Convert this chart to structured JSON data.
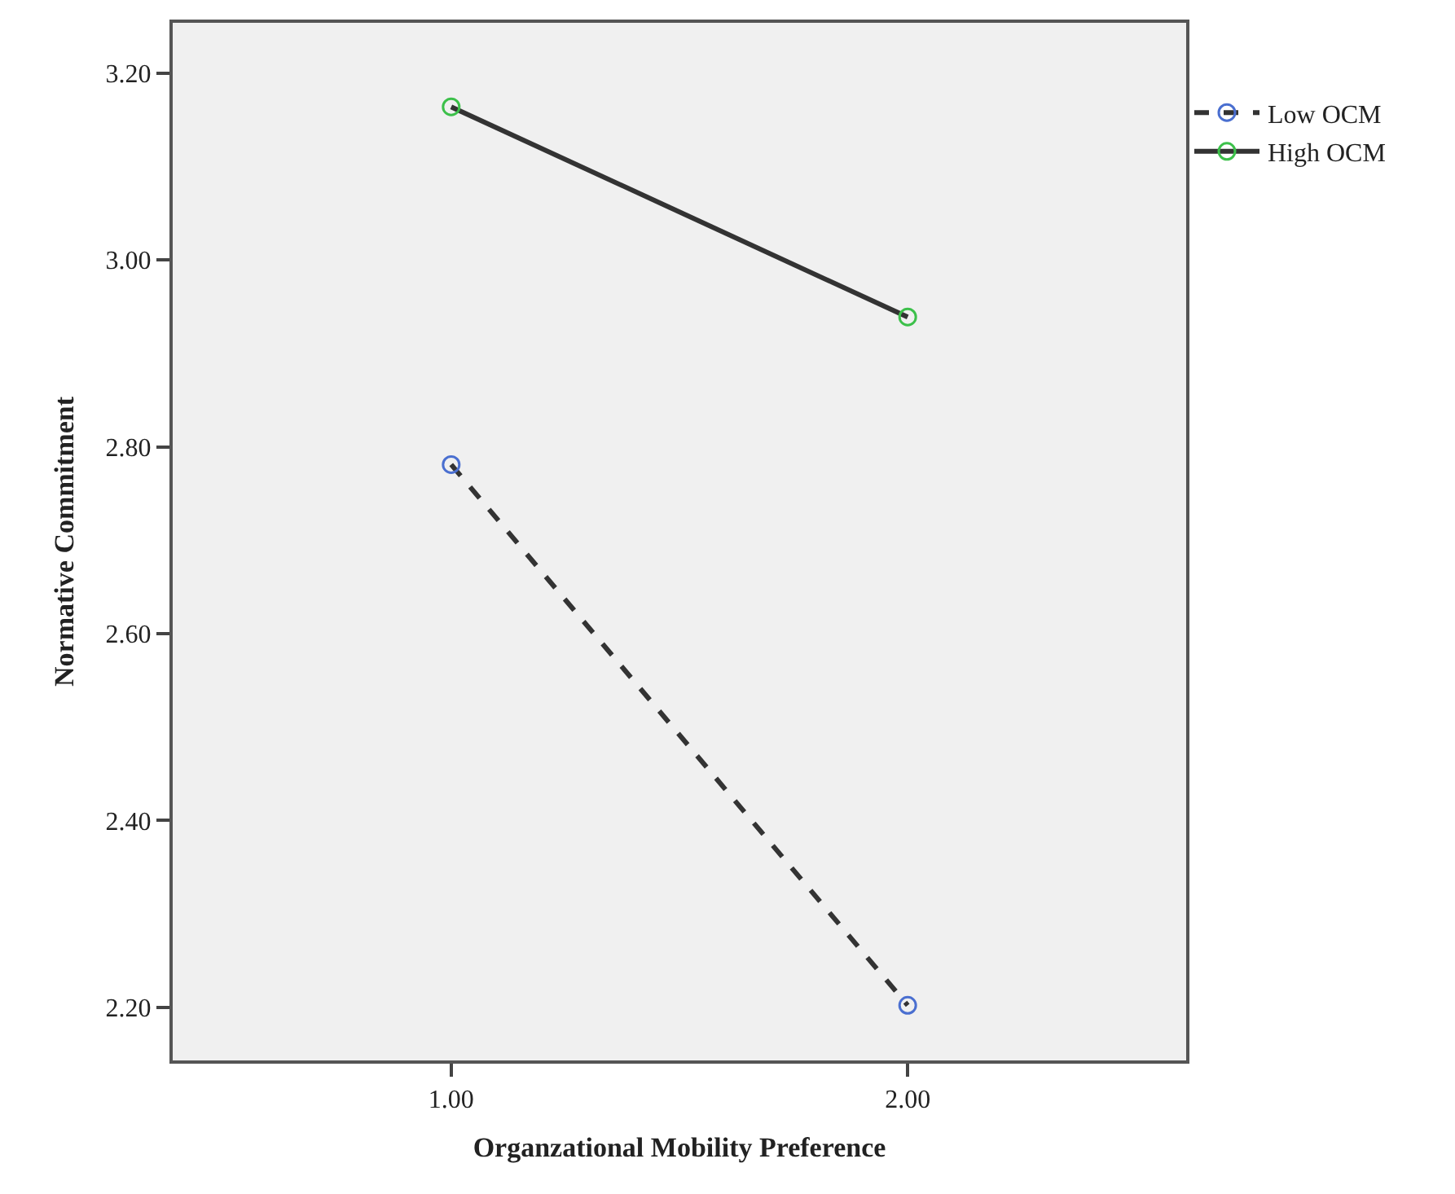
{
  "chart_data": {
    "type": "line",
    "xlabel": "Organzational Mobility Preference",
    "ylabel": "Normative Commitment",
    "x": [
      1,
      2
    ],
    "series": [
      {
        "name": "Low OCM",
        "color": "#333333",
        "colors": [
          "#4a6fd0",
          "#4a6fd0"
        ],
        "line_style": "dashed",
        "values": [
          2.781,
          2.202
        ]
      },
      {
        "name": "High OCM",
        "color": "#333333",
        "colors": [
          "#3cc04a",
          "#3cc04a"
        ],
        "line_style": "solid",
        "values": [
          3.164,
          2.939
        ]
      }
    ],
    "xlim": [
      0.39,
      2.61
    ],
    "xticks": [
      {
        "value": 1,
        "label": "1.00"
      },
      {
        "value": 2,
        "label": "2.00"
      }
    ],
    "ylim": [
      2.143,
      3.254
    ],
    "yticks": [
      {
        "value": 2.2,
        "label": "2.20"
      },
      {
        "value": 2.4,
        "label": "2.40"
      },
      {
        "value": 2.6,
        "label": "2.60"
      },
      {
        "value": 2.8,
        "label": "2.80"
      },
      {
        "value": 3.0,
        "label": "3.00"
      },
      {
        "value": 3.2,
        "label": "3.20"
      }
    ],
    "marker": "circle",
    "grid": false,
    "legend": "top right"
  }
}
